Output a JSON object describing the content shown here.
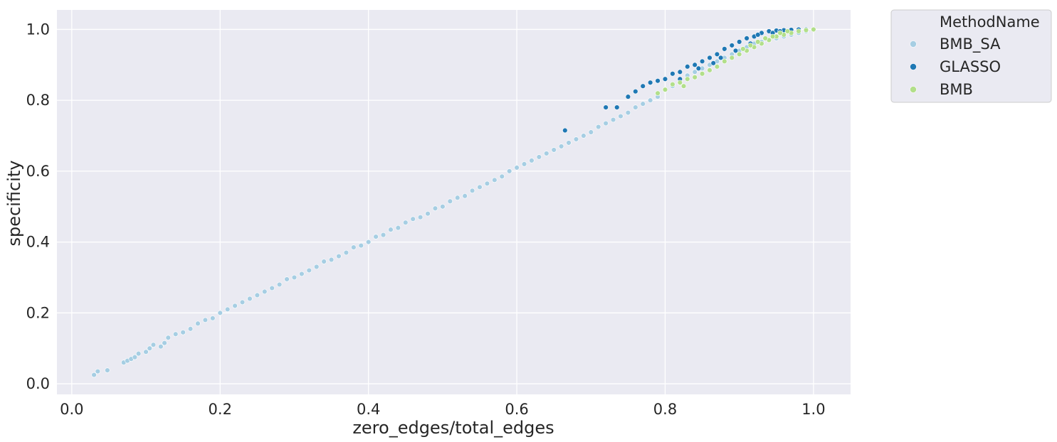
{
  "chart_data": {
    "type": "scatter",
    "xlabel": "zero_edges/total_edges",
    "ylabel": "specificity",
    "xlim": [
      -0.02,
      1.05
    ],
    "ylim": [
      -0.03,
      1.055
    ],
    "xticks": [
      0.0,
      0.2,
      0.4,
      0.6,
      0.8,
      1.0
    ],
    "xtick_labels": [
      "0.0",
      "0.2",
      "0.4",
      "0.6",
      "0.8",
      "1.0"
    ],
    "yticks": [
      0.0,
      0.2,
      0.4,
      0.6,
      0.8,
      1.0
    ],
    "ytick_labels": [
      "0.0",
      "0.2",
      "0.4",
      "0.6",
      "0.8",
      "1.0"
    ],
    "grid": true,
    "legend": {
      "title": "MethodName",
      "placement": "outside-top-right"
    },
    "series": [
      {
        "name": "BMB_SA",
        "color": "#a6cee3",
        "points": [
          [
            0.03,
            0.025
          ],
          [
            0.035,
            0.035
          ],
          [
            0.048,
            0.038
          ],
          [
            0.07,
            0.06
          ],
          [
            0.075,
            0.065
          ],
          [
            0.08,
            0.07
          ],
          [
            0.085,
            0.075
          ],
          [
            0.09,
            0.085
          ],
          [
            0.1,
            0.09
          ],
          [
            0.105,
            0.1
          ],
          [
            0.11,
            0.11
          ],
          [
            0.12,
            0.105
          ],
          [
            0.125,
            0.115
          ],
          [
            0.13,
            0.13
          ],
          [
            0.14,
            0.14
          ],
          [
            0.15,
            0.145
          ],
          [
            0.16,
            0.155
          ],
          [
            0.17,
            0.17
          ],
          [
            0.18,
            0.18
          ],
          [
            0.19,
            0.185
          ],
          [
            0.2,
            0.2
          ],
          [
            0.21,
            0.21
          ],
          [
            0.22,
            0.22
          ],
          [
            0.23,
            0.23
          ],
          [
            0.24,
            0.24
          ],
          [
            0.25,
            0.25
          ],
          [
            0.26,
            0.26
          ],
          [
            0.27,
            0.27
          ],
          [
            0.28,
            0.28
          ],
          [
            0.29,
            0.295
          ],
          [
            0.3,
            0.3
          ],
          [
            0.31,
            0.31
          ],
          [
            0.32,
            0.32
          ],
          [
            0.33,
            0.33
          ],
          [
            0.34,
            0.345
          ],
          [
            0.35,
            0.35
          ],
          [
            0.36,
            0.36
          ],
          [
            0.37,
            0.37
          ],
          [
            0.38,
            0.385
          ],
          [
            0.39,
            0.39
          ],
          [
            0.4,
            0.4
          ],
          [
            0.41,
            0.415
          ],
          [
            0.42,
            0.42
          ],
          [
            0.43,
            0.435
          ],
          [
            0.44,
            0.44
          ],
          [
            0.45,
            0.455
          ],
          [
            0.46,
            0.465
          ],
          [
            0.47,
            0.47
          ],
          [
            0.48,
            0.48
          ],
          [
            0.49,
            0.495
          ],
          [
            0.5,
            0.5
          ],
          [
            0.51,
            0.515
          ],
          [
            0.52,
            0.525
          ],
          [
            0.53,
            0.53
          ],
          [
            0.54,
            0.545
          ],
          [
            0.55,
            0.555
          ],
          [
            0.56,
            0.565
          ],
          [
            0.57,
            0.575
          ],
          [
            0.58,
            0.585
          ],
          [
            0.59,
            0.6
          ],
          [
            0.6,
            0.61
          ],
          [
            0.61,
            0.62
          ],
          [
            0.62,
            0.63
          ],
          [
            0.63,
            0.64
          ],
          [
            0.64,
            0.65
          ],
          [
            0.65,
            0.66
          ],
          [
            0.66,
            0.67
          ],
          [
            0.67,
            0.68
          ],
          [
            0.68,
            0.69
          ],
          [
            0.69,
            0.7
          ],
          [
            0.7,
            0.71
          ],
          [
            0.71,
            0.725
          ],
          [
            0.72,
            0.735
          ],
          [
            0.73,
            0.745
          ],
          [
            0.74,
            0.755
          ],
          [
            0.75,
            0.765
          ],
          [
            0.76,
            0.78
          ],
          [
            0.77,
            0.79
          ],
          [
            0.78,
            0.8
          ],
          [
            0.79,
            0.81
          ],
          [
            0.8,
            0.83
          ],
          [
            0.81,
            0.84
          ],
          [
            0.82,
            0.85
          ],
          [
            0.83,
            0.87
          ],
          [
            0.84,
            0.88
          ],
          [
            0.85,
            0.89
          ],
          [
            0.86,
            0.9
          ],
          [
            0.87,
            0.91
          ],
          [
            0.88,
            0.92
          ],
          [
            0.89,
            0.93
          ],
          [
            0.9,
            0.94
          ],
          [
            0.91,
            0.95
          ],
          [
            0.92,
            0.96
          ],
          [
            0.93,
            0.965
          ],
          [
            0.94,
            0.97
          ],
          [
            0.95,
            0.975
          ],
          [
            0.96,
            0.98
          ],
          [
            0.97,
            0.985
          ],
          [
            0.98,
            0.99
          ],
          [
            0.99,
            0.995
          ]
        ]
      },
      {
        "name": "GLASSO",
        "color": "#1f78b4",
        "points": [
          [
            0.665,
            0.715
          ],
          [
            0.72,
            0.78
          ],
          [
            0.735,
            0.78
          ],
          [
            0.75,
            0.81
          ],
          [
            0.76,
            0.825
          ],
          [
            0.77,
            0.84
          ],
          [
            0.78,
            0.85
          ],
          [
            0.79,
            0.855
          ],
          [
            0.8,
            0.86
          ],
          [
            0.81,
            0.875
          ],
          [
            0.82,
            0.88
          ],
          [
            0.83,
            0.895
          ],
          [
            0.84,
            0.9
          ],
          [
            0.85,
            0.91
          ],
          [
            0.86,
            0.92
          ],
          [
            0.87,
            0.93
          ],
          [
            0.88,
            0.945
          ],
          [
            0.89,
            0.955
          ],
          [
            0.9,
            0.965
          ],
          [
            0.91,
            0.975
          ],
          [
            0.92,
            0.98
          ],
          [
            0.93,
            0.99
          ],
          [
            0.94,
            0.995
          ],
          [
            0.95,
            0.997
          ],
          [
            0.96,
            0.998
          ],
          [
            0.97,
            0.999
          ],
          [
            0.98,
            1.0
          ],
          [
            0.99,
            1.0
          ],
          [
            0.875,
            0.92
          ],
          [
            0.895,
            0.94
          ],
          [
            0.915,
            0.96
          ],
          [
            0.925,
            0.985
          ],
          [
            0.935,
            0.975
          ],
          [
            0.945,
            0.99
          ],
          [
            0.955,
            0.995
          ],
          [
            0.82,
            0.86
          ],
          [
            0.845,
            0.89
          ],
          [
            0.865,
            0.905
          ]
        ]
      },
      {
        "name": "BMB",
        "color": "#b2df8a",
        "points": [
          [
            0.79,
            0.82
          ],
          [
            0.8,
            0.83
          ],
          [
            0.81,
            0.845
          ],
          [
            0.82,
            0.85
          ],
          [
            0.825,
            0.84
          ],
          [
            0.83,
            0.86
          ],
          [
            0.84,
            0.865
          ],
          [
            0.85,
            0.875
          ],
          [
            0.86,
            0.885
          ],
          [
            0.87,
            0.895
          ],
          [
            0.88,
            0.91
          ],
          [
            0.89,
            0.92
          ],
          [
            0.9,
            0.93
          ],
          [
            0.91,
            0.94
          ],
          [
            0.92,
            0.95
          ],
          [
            0.93,
            0.96
          ],
          [
            0.94,
            0.97
          ],
          [
            0.95,
            0.98
          ],
          [
            0.96,
            0.985
          ],
          [
            0.97,
            0.99
          ],
          [
            0.98,
            0.995
          ],
          [
            0.99,
            0.998
          ],
          [
            1.0,
            1.0
          ],
          [
            0.905,
            0.945
          ],
          [
            0.915,
            0.955
          ],
          [
            0.925,
            0.965
          ],
          [
            0.935,
            0.975
          ],
          [
            0.945,
            0.98
          ],
          [
            0.955,
            0.99
          ],
          [
            0.965,
            0.995
          ]
        ]
      }
    ]
  }
}
